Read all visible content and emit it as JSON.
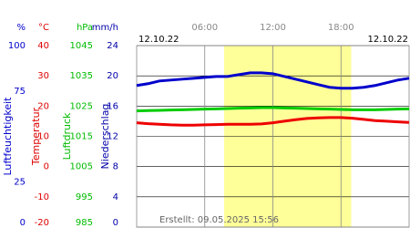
{
  "chart_data": {
    "type": "line",
    "date_start": "12.10.22",
    "date_end": "12.10.22",
    "footer": "Erstellt: 09.05.2025 15:56",
    "xlim": [
      0,
      24
    ],
    "xticks": [
      {
        "value": 6,
        "label": "06:00"
      },
      {
        "value": 12,
        "label": "12:00"
      },
      {
        "value": 18,
        "label": "18:00"
      }
    ],
    "daylight": [
      7.7,
      18.9
    ],
    "axes": [
      {
        "unit": "%",
        "title": "Luftfeuchtigkeit",
        "color": "#0000cc",
        "ylim": [
          0,
          100
        ],
        "yticks": [
          100,
          75,
          25,
          0
        ]
      },
      {
        "unit": "°C",
        "title": "Temperatur",
        "color": "#dd0000",
        "ylim": [
          -20,
          40
        ],
        "yticks": [
          40,
          30,
          20,
          10,
          0,
          -10,
          -20
        ]
      },
      {
        "unit": "hPa",
        "title": "Luftdruck",
        "color": "#00bb00",
        "ylim": [
          985,
          1045
        ],
        "yticks": [
          1045,
          1035,
          1025,
          1015,
          1005,
          995,
          985
        ]
      },
      {
        "unit": "mm/h",
        "title": "Niederschlag",
        "color": "#0000aa",
        "ylim": [
          0,
          24
        ],
        "yticks": [
          24,
          20,
          16,
          12,
          8,
          4,
          0
        ]
      }
    ],
    "x": [
      0,
      1,
      2,
      3,
      4,
      5,
      6,
      7,
      8,
      9,
      10,
      11,
      12,
      13,
      14,
      15,
      16,
      17,
      18,
      19,
      20,
      21,
      22,
      23,
      24
    ],
    "series": [
      {
        "axis": 0,
        "color": "#0000cc",
        "values": [
          78,
          79,
          80.5,
          81,
          81.5,
          82,
          82.5,
          83,
          83,
          84,
          85,
          85,
          84.5,
          83,
          81.5,
          80,
          78.5,
          77,
          76.5,
          76.5,
          77,
          78,
          79.5,
          81,
          82
        ]
      },
      {
        "axis": 1,
        "color": "#ee0000",
        "values": [
          14.5,
          14.2,
          14,
          13.8,
          13.7,
          13.7,
          13.8,
          13.9,
          14,
          14,
          14,
          14.1,
          14.5,
          15,
          15.5,
          15.9,
          16.1,
          16.2,
          16.2,
          16,
          15.6,
          15.2,
          15,
          14.8,
          14.6
        ]
      },
      {
        "axis": 2,
        "color": "#00cc00",
        "values": [
          1023.4,
          1023.5,
          1023.6,
          1023.7,
          1023.8,
          1023.9,
          1024,
          1024.1,
          1024.2,
          1024.3,
          1024.4,
          1024.5,
          1024.5,
          1024.4,
          1024.3,
          1024.2,
          1024.1,
          1024,
          1023.9,
          1023.8,
          1023.8,
          1023.8,
          1023.9,
          1024,
          1024.1
        ]
      }
    ]
  }
}
